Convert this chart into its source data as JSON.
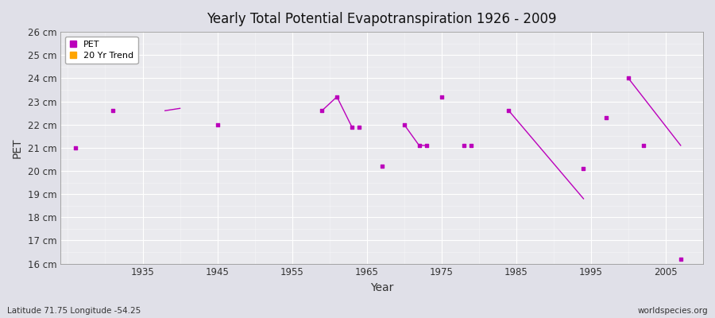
{
  "title": "Yearly Total Potential Evapotranspiration 1926 - 2009",
  "xlabel": "Year",
  "ylabel": "PET",
  "bottom_left_label": "Latitude 71.75 Longitude -54.25",
  "bottom_right_label": "worldspecies.org",
  "xlim": [
    1924,
    2010
  ],
  "ylim": [
    16,
    26
  ],
  "ytick_labels": [
    "16 cm",
    "17 cm",
    "18 cm",
    "19 cm",
    "20 cm",
    "21 cm",
    "22 cm",
    "23 cm",
    "24 cm",
    "25 cm",
    "26 cm"
  ],
  "ytick_values": [
    16,
    17,
    18,
    19,
    20,
    21,
    22,
    23,
    24,
    25,
    26
  ],
  "xtick_values": [
    1935,
    1945,
    1955,
    1965,
    1975,
    1985,
    1995,
    2005
  ],
  "pet_color": "#BB00BB",
  "trend_color": "#BB00BB",
  "legend_pet_color": "#BB00BB",
  "legend_trend_color": "#FFA500",
  "fig_bg_color": "#E0E0E8",
  "plot_bg_color": "#EAEAEE",
  "grid_color": "#FFFFFF",
  "pet_points": [
    [
      1926,
      21.0
    ],
    [
      1931,
      22.6
    ],
    [
      1945,
      22.0
    ],
    [
      1959,
      22.6
    ],
    [
      1961,
      23.2
    ],
    [
      1963,
      21.9
    ],
    [
      1964,
      21.9
    ],
    [
      1967,
      20.2
    ],
    [
      1970,
      22.0
    ],
    [
      1972,
      21.1
    ],
    [
      1973,
      21.1
    ],
    [
      1975,
      23.2
    ],
    [
      1978,
      21.1
    ],
    [
      1979,
      21.1
    ],
    [
      1984,
      22.6
    ],
    [
      1994,
      20.1
    ],
    [
      1997,
      22.3
    ],
    [
      2000,
      24.0
    ],
    [
      2002,
      21.1
    ],
    [
      2007,
      16.2
    ]
  ],
  "trend_segments": [
    [
      [
        1938,
        22.6
      ],
      [
        1940,
        22.7
      ]
    ],
    [
      [
        1959,
        22.6
      ],
      [
        1961,
        23.2
      ],
      [
        1963,
        21.9
      ]
    ],
    [
      [
        1970,
        22.0
      ],
      [
        1972,
        21.1
      ],
      [
        1973,
        21.1
      ]
    ],
    [
      [
        1984,
        22.6
      ],
      [
        1994,
        18.8
      ]
    ],
    [
      [
        2000,
        24.0
      ],
      [
        2007,
        21.1
      ]
    ]
  ]
}
